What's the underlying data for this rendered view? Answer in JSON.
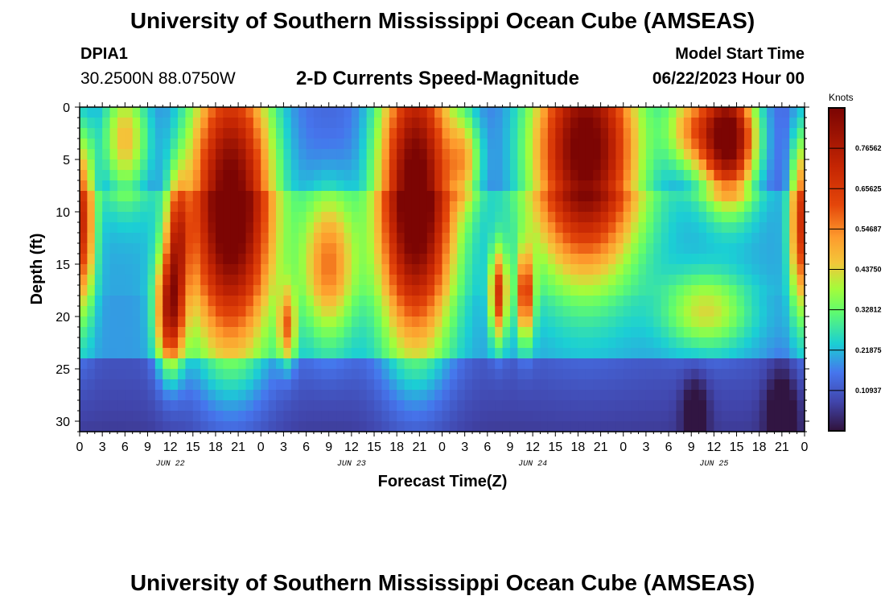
{
  "header": {
    "title": "University of Southern Mississippi Ocean Cube (AMSEAS)",
    "station_id": "DPIA1",
    "coordinates": "30.2500N  88.0750W",
    "subtitle": "2-D Currents Speed-Magnitude",
    "model_start_label": "Model Start Time",
    "model_start_value": "06/22/2023 Hour 00"
  },
  "footer": {
    "title": "University of Southern Mississippi Ocean Cube (AMSEAS)"
  },
  "chart_data": {
    "type": "heatmap",
    "title": "2-D Currents Speed-Magnitude",
    "xlabel": "Forecast Time(Z)",
    "ylabel": "Depth (ft)",
    "x_range_hours": [
      0,
      96
    ],
    "y_range": [
      0,
      31
    ],
    "x_tick_labels": [
      "0",
      "3",
      "6",
      "9",
      "12",
      "15",
      "18",
      "21",
      "0",
      "3",
      "6",
      "9",
      "12",
      "15",
      "18",
      "21",
      "0",
      "3",
      "6",
      "9",
      "12",
      "15",
      "18",
      "21",
      "0",
      "3",
      "6",
      "9",
      "12",
      "15",
      "18",
      "21",
      "0"
    ],
    "y_ticks": [
      0,
      5,
      10,
      15,
      20,
      25,
      30
    ],
    "y_tick_labels": [
      "0",
      "5",
      "10",
      "15",
      "20",
      "25",
      "30"
    ],
    "dates": [
      {
        "label": "JUN 22",
        "hour": 12
      },
      {
        "label": "JUN 23",
        "hour": 36
      },
      {
        "label": "JUN 24",
        "hour": 60
      },
      {
        "label": "JUN 25",
        "hour": 84
      }
    ],
    "colorbar": {
      "unit": "Knots",
      "range": [
        0,
        0.875
      ],
      "tick_values": [
        0.10937,
        0.21875,
        0.32812,
        0.4375,
        0.54687,
        0.65625,
        0.76562
      ],
      "tick_labels": [
        "0.10937",
        "0.21875",
        "0.32812",
        "0.43750",
        "0.54687",
        "0.65625",
        "0.76562"
      ]
    },
    "features": [
      {
        "t": 0.3,
        "d": 11,
        "st": 1.2,
        "sd": 6,
        "v": 0.5
      },
      {
        "t": 6,
        "d": 3,
        "st": 2.2,
        "sd": 4,
        "v": 0.34
      },
      {
        "t": 12,
        "d": 19.5,
        "st": 1.3,
        "sd": 4,
        "v": 0.55
      },
      {
        "t": 13,
        "d": 12,
        "st": 1.0,
        "sd": 4,
        "v": 0.34
      },
      {
        "t": 20,
        "d": 9,
        "st": 4,
        "sd": 10,
        "v": 0.78
      },
      {
        "t": 27.5,
        "d": 21,
        "st": 0.8,
        "sd": 2.5,
        "v": 0.32
      },
      {
        "t": 33,
        "d": 15,
        "st": 2.5,
        "sd": 5,
        "v": 0.36
      },
      {
        "t": 44.5,
        "d": 8,
        "st": 3.5,
        "sd": 10,
        "v": 0.8
      },
      {
        "t": 51,
        "d": 5,
        "st": 1.5,
        "sd": 3,
        "v": 0.25
      },
      {
        "t": 55.5,
        "d": 18,
        "st": 0.8,
        "sd": 3,
        "v": 0.46
      },
      {
        "t": 59,
        "d": 18,
        "st": 0.8,
        "sd": 3,
        "v": 0.44
      },
      {
        "t": 67,
        "d": 4,
        "st": 5,
        "sd": 8,
        "v": 0.78
      },
      {
        "t": 86,
        "d": 3,
        "st": 2.5,
        "sd": 4,
        "v": 0.78
      },
      {
        "t": 81,
        "d": 2,
        "st": 2.5,
        "sd": 3,
        "v": 0.33
      },
      {
        "t": 95.5,
        "d": 11,
        "st": 1.0,
        "sd": 6,
        "v": 0.48
      },
      {
        "t": 83,
        "d": 19.5,
        "st": 4,
        "sd": 2.5,
        "v": 0.24
      },
      {
        "t": 81.5,
        "d": 29,
        "st": 1.2,
        "sd": 2.5,
        "v": -0.12
      },
      {
        "t": 93,
        "d": 29,
        "st": 1.5,
        "sd": 3,
        "v": -0.14
      }
    ]
  }
}
